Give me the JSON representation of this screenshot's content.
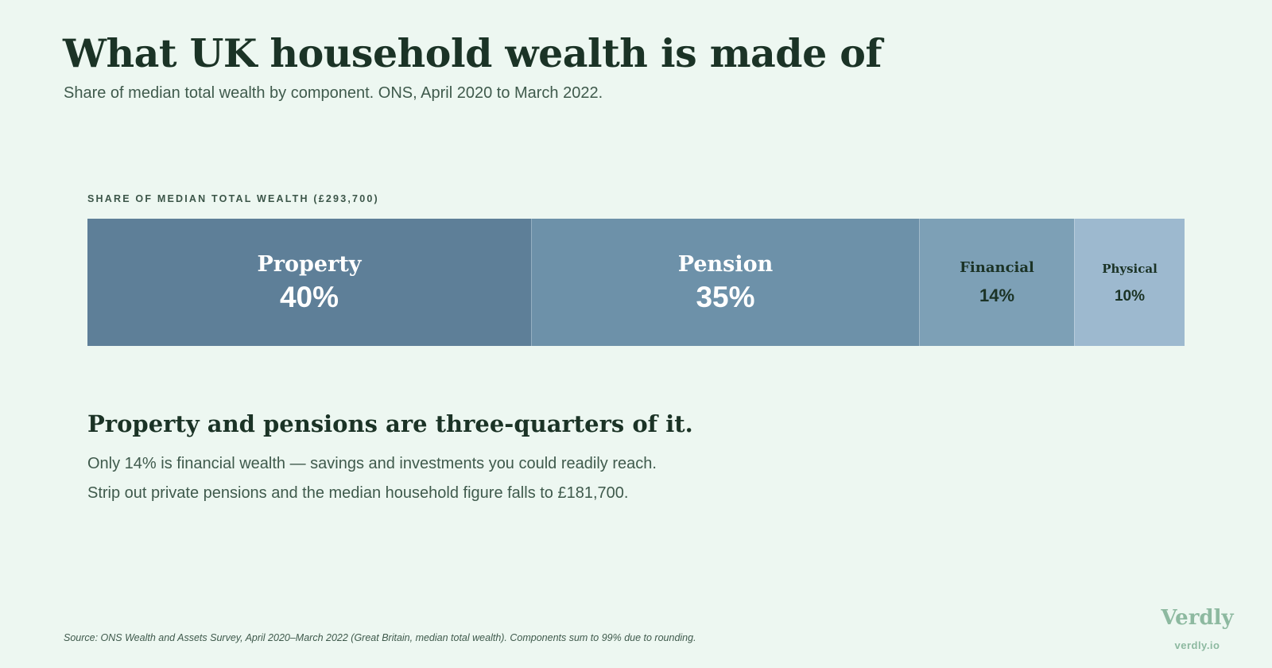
{
  "header": {
    "title": "What UK household wealth is made of",
    "subtitle": "Share of median total wealth by component. ONS, April 2020 to March 2022."
  },
  "chart_data": {
    "type": "bar",
    "orientation": "horizontal-stacked",
    "label": "SHARE OF MEDIAN TOTAL WEALTH (£293,700)",
    "unit": "%",
    "categories": [
      "Property",
      "Pension",
      "Financial",
      "Physical"
    ],
    "values": [
      40,
      35,
      14,
      10
    ],
    "value_labels": [
      "40%",
      "35%",
      "14%",
      "10%"
    ],
    "colors": [
      "#5e7f98",
      "#6d91a9",
      "#7da0b6",
      "#9db9cf"
    ]
  },
  "insight": {
    "heading": "Property and pensions are three-quarters of it.",
    "line1": "Only 14% is financial wealth — savings and investments you could readily reach.",
    "line2": "Strip out private pensions and the median household figure falls to £181,700."
  },
  "footer": {
    "source": "Source: ONS Wealth and Assets Survey, April 2020–March 2022 (Great Britain, median total wealth). Components sum to 99% due to rounding.",
    "brand": "Verdly",
    "brand_url": "verdly.io"
  }
}
